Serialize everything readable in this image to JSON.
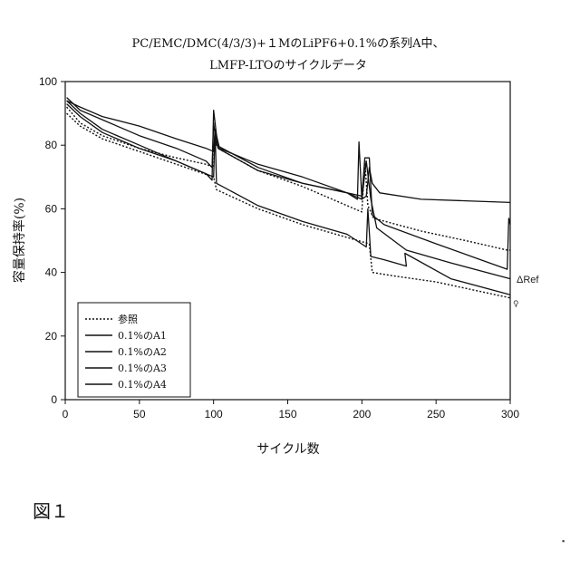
{
  "figure_label": "図１",
  "corner_mark": "▪",
  "chart_data": {
    "type": "line",
    "title_lines": [
      "PC/EMC/DMC(4/3/3)+１MのLiPF6+0.1%の系列A中、",
      "LMFP-LTOのサイクルデータ"
    ],
    "xlabel": "サイクル数",
    "ylabel": "容量保持率(%)",
    "xlim": [
      0,
      300
    ],
    "ylim": [
      0,
      100
    ],
    "xticks": [
      "0",
      "50",
      "100",
      "150",
      "200",
      "250",
      "300"
    ],
    "yticks": [
      "0",
      "20",
      "40",
      "60",
      "80",
      "100"
    ],
    "grid": false,
    "legend_position": "bottom-left",
    "annotations": [
      "ΔRef"
    ],
    "series": [
      {
        "name": "参照",
        "style": "dotted",
        "points": [
          [
            1,
            92
          ],
          [
            10,
            87
          ],
          [
            25,
            83
          ],
          [
            50,
            79
          ],
          [
            75,
            76
          ],
          [
            95,
            74
          ],
          [
            100,
            73
          ],
          [
            101,
            84
          ],
          [
            103,
            79
          ],
          [
            130,
            72
          ],
          [
            160,
            67
          ],
          [
            190,
            61
          ],
          [
            200,
            59
          ],
          [
            202,
            75
          ],
          [
            204,
            61
          ],
          [
            208,
            57
          ],
          [
            240,
            53
          ],
          [
            270,
            50
          ],
          [
            298,
            47
          ],
          [
            300,
            47
          ]
        ]
      },
      {
        "name": "0.1%のA1",
        "style": "solid",
        "points": [
          [
            1,
            94
          ],
          [
            10,
            92
          ],
          [
            25,
            89
          ],
          [
            50,
            86
          ],
          [
            75,
            82
          ],
          [
            95,
            79
          ],
          [
            100,
            78
          ],
          [
            101,
            85
          ],
          [
            104,
            79
          ],
          [
            130,
            74
          ],
          [
            160,
            70
          ],
          [
            190,
            65
          ],
          [
            197,
            63
          ],
          [
            198,
            81
          ],
          [
            200,
            63
          ],
          [
            203,
            64
          ],
          [
            205,
            73
          ],
          [
            207,
            68
          ],
          [
            212,
            65
          ],
          [
            240,
            63
          ],
          [
            270,
            62.5
          ],
          [
            300,
            62
          ]
        ]
      },
      {
        "name": "0.1%のA2",
        "style": "solid",
        "points": [
          [
            1,
            95
          ],
          [
            10,
            91
          ],
          [
            25,
            88
          ],
          [
            50,
            83
          ],
          [
            75,
            79
          ],
          [
            95,
            75
          ],
          [
            99,
            73
          ],
          [
            100,
            87
          ],
          [
            102,
            80
          ],
          [
            130,
            73
          ],
          [
            160,
            68
          ],
          [
            190,
            65
          ],
          [
            200,
            64
          ],
          [
            202,
            76
          ],
          [
            205,
            76
          ],
          [
            207,
            58
          ],
          [
            215,
            55
          ],
          [
            250,
            49
          ],
          [
            280,
            44
          ],
          [
            298,
            41
          ],
          [
            299,
            57
          ],
          [
            300,
            55
          ]
        ]
      },
      {
        "name": "0.1%のA3",
        "style": "solid",
        "points": [
          [
            1,
            94
          ],
          [
            10,
            90
          ],
          [
            25,
            85
          ],
          [
            50,
            80
          ],
          [
            75,
            75
          ],
          [
            95,
            71
          ],
          [
            99,
            69
          ],
          [
            100,
            91
          ],
          [
            103,
            79
          ],
          [
            130,
            72
          ],
          [
            160,
            68
          ],
          [
            190,
            65
          ],
          [
            200,
            63
          ],
          [
            203,
            75
          ],
          [
            206,
            63
          ],
          [
            210,
            54
          ],
          [
            230,
            47
          ],
          [
            260,
            43
          ],
          [
            300,
            38
          ]
        ]
      },
      {
        "name": "0.1%のA4",
        "style": "solid",
        "points": [
          [
            1,
            93
          ],
          [
            10,
            89
          ],
          [
            25,
            84
          ],
          [
            50,
            79
          ],
          [
            75,
            75
          ],
          [
            95,
            71
          ],
          [
            100,
            70
          ],
          [
            101,
            85
          ],
          [
            102,
            68
          ],
          [
            130,
            61
          ],
          [
            160,
            56
          ],
          [
            190,
            52
          ],
          [
            203,
            48
          ],
          [
            204,
            60
          ],
          [
            206,
            45
          ],
          [
            215,
            44
          ],
          [
            230,
            42
          ],
          [
            229,
            46
          ],
          [
            260,
            38
          ],
          [
            300,
            33
          ]
        ]
      },
      {
        "name": "",
        "style": "dotted",
        "points": [
          [
            1,
            90
          ],
          [
            10,
            86
          ],
          [
            25,
            82
          ],
          [
            50,
            78
          ],
          [
            75,
            74
          ],
          [
            100,
            70
          ],
          [
            102,
            66
          ],
          [
            130,
            60
          ],
          [
            160,
            55
          ],
          [
            190,
            51
          ],
          [
            205,
            49
          ],
          [
            207,
            40
          ],
          [
            220,
            39
          ],
          [
            250,
            37
          ],
          [
            280,
            34
          ],
          [
            300,
            32
          ]
        ]
      }
    ]
  }
}
